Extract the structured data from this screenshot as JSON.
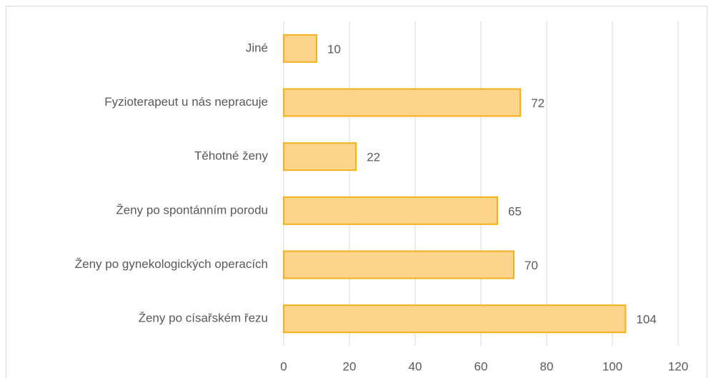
{
  "chart_data": {
    "type": "hbar",
    "categories": [
      "Jiné",
      "Fyzioterapeut u nás nepracuje",
      "Těhotné ženy",
      "Ženy po spontánním porodu",
      "Ženy po gynekologických operacích",
      "Ženy po císařském řezu"
    ],
    "values": [
      10,
      72,
      22,
      65,
      70,
      104
    ],
    "color": "#fdd48c",
    "edge_color": "#f2b11c",
    "xlim": [
      0,
      120
    ],
    "xticks": [
      0,
      20,
      40,
      60,
      80,
      100,
      120
    ],
    "grid": true
  }
}
